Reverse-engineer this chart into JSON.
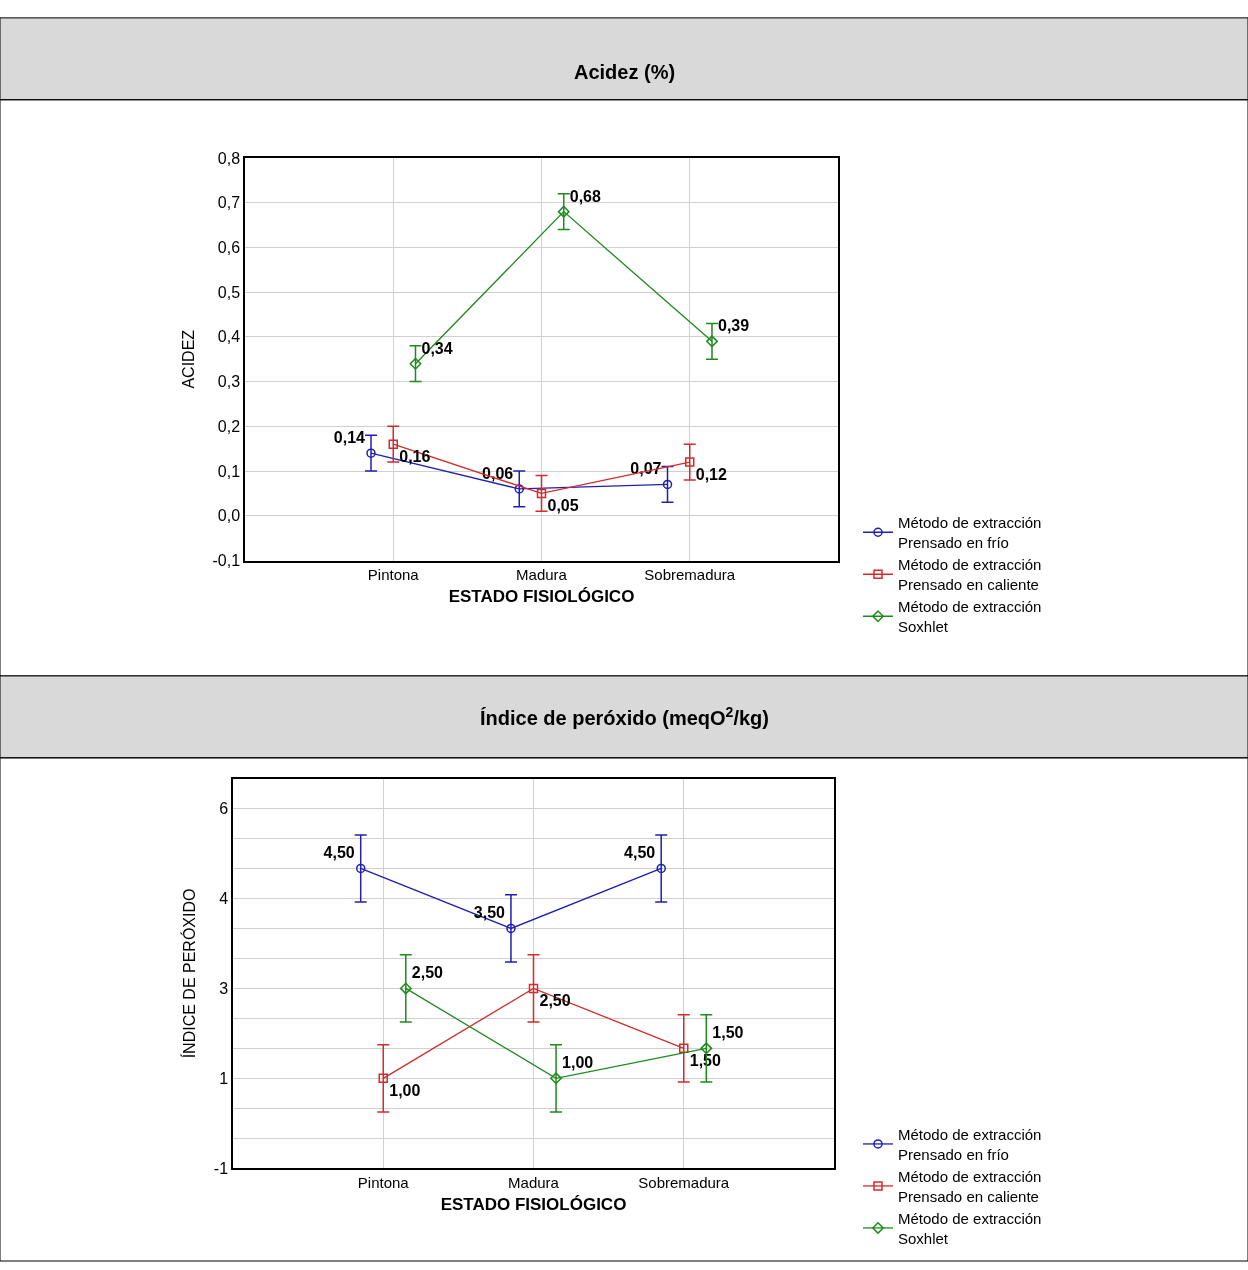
{
  "chart_data": [
    {
      "type": "line",
      "title": "Acidez (%)",
      "xlabel": "ESTADO FISIOLÓGICO",
      "ylabel": "ACIDEZ",
      "categories": [
        "Pintona",
        "Madura",
        "Sobremadura"
      ],
      "ylim": [
        -0.1,
        0.8
      ],
      "yticks": [
        {
          "value": -0.1,
          "label": "-0,1"
        },
        {
          "value": 0,
          "label": "0,0"
        },
        {
          "value": 0.1,
          "label": "0,1"
        },
        {
          "value": 0.2,
          "label": "0,2"
        },
        {
          "value": 0.3,
          "label": "0,3"
        },
        {
          "value": 0.4,
          "label": "0,4"
        },
        {
          "value": 0.5,
          "label": "0,5"
        },
        {
          "value": 0.6,
          "label": "0,6"
        },
        {
          "value": 0.7,
          "label": "0,7"
        },
        {
          "value": 0.8,
          "label": "0,8"
        }
      ],
      "grid": true,
      "legend": "bottom right",
      "series": [
        {
          "name": "Método de extracción\nPrensado en frío",
          "color": "#1f1fb4",
          "marker": "circle",
          "values": [
            0.14,
            0.06,
            0.07
          ],
          "errors": [
            0.04,
            0.04,
            0.04
          ],
          "value_labels": [
            "0,14",
            "0,06",
            "0,07"
          ]
        },
        {
          "name": "Método de extracción\nPrensado en caliente",
          "color": "#d42a2a",
          "marker": "square",
          "values": [
            0.16,
            0.05,
            0.12
          ],
          "errors": [
            0.04,
            0.04,
            0.04
          ],
          "value_labels": [
            "0,16",
            "0,05",
            "0,12"
          ]
        },
        {
          "name": "Método de extracción\nSoxhlet",
          "color": "#1e8a1e",
          "marker": "diamond",
          "values": [
            0.34,
            0.68,
            0.39
          ],
          "errors": [
            0.04,
            0.04,
            0.04
          ],
          "value_labels": [
            "0,34",
            "0,68",
            "0,39"
          ]
        }
      ]
    },
    {
      "type": "line",
      "title": "Índice de peróxido (meqO$^{2}$/kg)",
      "xlabel": "ESTADO FISIOLÓGICO",
      "ylabel": "ÍNDICE DE PERÓXIDO",
      "categories": [
        "Pintona",
        "Madura",
        "Sobremadura"
      ],
      "ylim": [
        -0.5,
        6.0
      ],
      "yticks": [
        {
          "value": -0.5,
          "label": "-1"
        },
        {
          "value": 0,
          "label": null
        },
        {
          "value": 0.5,
          "label": null
        },
        {
          "value": 1,
          "label": "1"
        },
        {
          "value": 1.5,
          "label": null
        },
        {
          "value": 2,
          "label": null
        },
        {
          "value": 2.5,
          "label": "3"
        },
        {
          "value": 3,
          "label": null
        },
        {
          "value": 3.5,
          "label": null
        },
        {
          "value": 4,
          "label": "4"
        },
        {
          "value": 4.5,
          "label": null
        },
        {
          "value": 5,
          "label": null
        },
        {
          "value": 5.5,
          "label": "6"
        }
      ],
      "grid": true,
      "legend": "bottom right",
      "series": [
        {
          "name": "Método de extracción\nPrensado en frío",
          "color": "#1f1fb4",
          "marker": "circle",
          "values": [
            4.5,
            3.5,
            4.5
          ],
          "errors": [
            0.56,
            0.56,
            0.56
          ],
          "value_labels": [
            "4,50",
            "3,50",
            "4,50"
          ]
        },
        {
          "name": "Método de extracción\nPrensado en caliente",
          "color": "#d42a2a",
          "marker": "square",
          "values": [
            1.0,
            2.5,
            1.5
          ],
          "errors": [
            0.56,
            0.56,
            0.56
          ],
          "value_labels": [
            "1,00",
            "2,50",
            "1,50"
          ]
        },
        {
          "name": "Método de extracción\nSoxhlet",
          "color": "#1e8a1e",
          "marker": "diamond",
          "values": [
            2.5,
            1.0,
            1.5
          ],
          "errors": [
            0.56,
            0.56,
            0.56
          ],
          "value_labels": [
            "2,50",
            "1,00",
            "1,50"
          ]
        }
      ]
    }
  ]
}
